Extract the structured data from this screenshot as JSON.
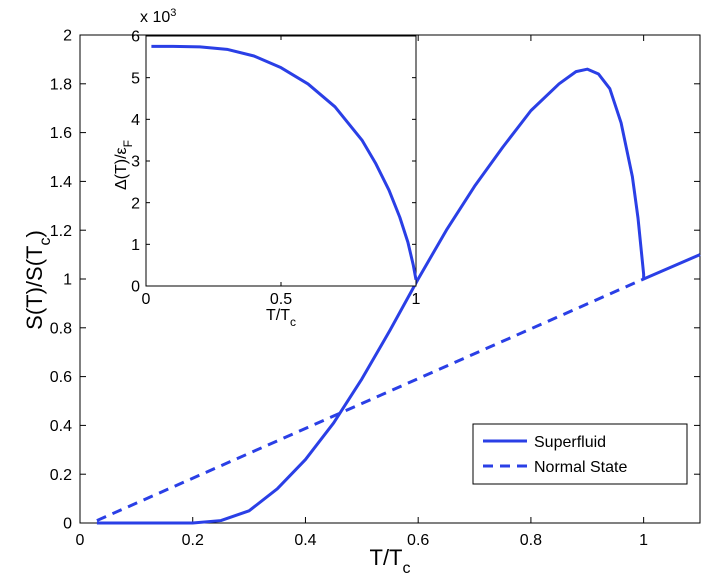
{
  "chart_data": [
    {
      "type": "line",
      "xlabel_main": "T/T",
      "xlabel_sub": "c",
      "ylabel_main": "S(T)/S(T",
      "ylabel_sub": "c",
      "ylabel_close": ")",
      "xlim": [
        0,
        1.1
      ],
      "ylim": [
        0,
        2
      ],
      "xticks": [
        0,
        0.2,
        0.4,
        0.6,
        0.8,
        1
      ],
      "xtick_labels": [
        "0",
        "0.2",
        "0.4",
        "0.6",
        "0.8",
        "1"
      ],
      "yticks": [
        0,
        0.2,
        0.4,
        0.6,
        0.8,
        1,
        1.2,
        1.4,
        1.6,
        1.8,
        2
      ],
      "ytick_labels": [
        "0",
        "0.2",
        "0.4",
        "0.6",
        "0.8",
        "1",
        "1.2",
        "1.4",
        "1.6",
        "1.8",
        "2"
      ],
      "grid": false,
      "legend_position": "bottom-right",
      "series": [
        {
          "name": "Superfluid",
          "style": "solid",
          "color": "#2a3fe6",
          "x": [
            0.03,
            0.1,
            0.2,
            0.25,
            0.3,
            0.35,
            0.4,
            0.45,
            0.5,
            0.55,
            0.6,
            0.65,
            0.7,
            0.75,
            0.8,
            0.85,
            0.88,
            0.9,
            0.92,
            0.94,
            0.96,
            0.98,
            0.99,
            1.0,
            1.0,
            1.1
          ],
          "y": [
            0,
            0,
            0,
            0.01,
            0.05,
            0.14,
            0.26,
            0.41,
            0.59,
            0.79,
            1.0,
            1.2,
            1.38,
            1.54,
            1.69,
            1.8,
            1.85,
            1.86,
            1.84,
            1.78,
            1.64,
            1.42,
            1.25,
            1.02,
            1.0,
            1.1
          ]
        },
        {
          "name": "Normal State",
          "style": "dashed",
          "color": "#2a3fe6",
          "x": [
            0.03,
            1.0
          ],
          "y": [
            0.01,
            1.0
          ]
        }
      ]
    },
    {
      "type": "line",
      "xlabel_main": "T/T",
      "xlabel_sub": "c",
      "ylabel_main": "Δ(T)/ε",
      "ylabel_sub": "F",
      "exponent_label": "x 10",
      "exponent_power": "3",
      "xlim": [
        0,
        1
      ],
      "ylim": [
        0,
        6
      ],
      "xticks": [
        0,
        0.5,
        1
      ],
      "xtick_labels": [
        "0",
        "0.5",
        "1"
      ],
      "yticks": [
        0,
        1,
        2,
        3,
        4,
        5,
        6
      ],
      "ytick_labels": [
        "0",
        "1",
        "2",
        "3",
        "4",
        "5",
        "6"
      ],
      "grid": false,
      "series": [
        {
          "color": "#2a3fe6",
          "x": [
            0.02,
            0.1,
            0.2,
            0.3,
            0.4,
            0.5,
            0.6,
            0.7,
            0.8,
            0.85,
            0.9,
            0.94,
            0.97,
            0.99,
            1.0
          ],
          "y": [
            5.75,
            5.75,
            5.74,
            5.68,
            5.52,
            5.24,
            4.85,
            4.3,
            3.5,
            2.95,
            2.3,
            1.65,
            1.05,
            0.5,
            0.15
          ]
        }
      ]
    }
  ],
  "legend": {
    "items": [
      {
        "label": "Superfluid",
        "style": "solid"
      },
      {
        "label": "Normal State",
        "style": "dashed"
      }
    ]
  }
}
